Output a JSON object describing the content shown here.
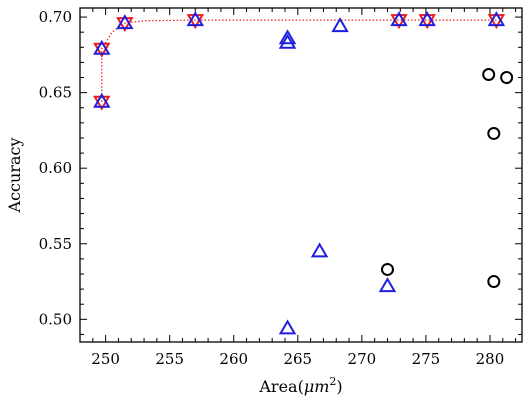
{
  "chart_data": {
    "type": "scatter",
    "title": "",
    "xlabel_main": "Area(",
    "xlabel_unit": "μm",
    "xlabel_exp": "2",
    "xlabel_close": ")",
    "ylabel": "Accuracy",
    "xlim": [
      248,
      282.5
    ],
    "ylim": [
      0.485,
      0.706
    ],
    "x_ticks": [
      250,
      255,
      260,
      265,
      270,
      275,
      280
    ],
    "x_tick_labels": [
      "250",
      "255",
      "260",
      "265",
      "270",
      "275",
      "280"
    ],
    "y_ticks": [
      0.5,
      0.55,
      0.6,
      0.65,
      0.7
    ],
    "y_tick_labels": [
      "0.50",
      "0.55",
      "0.60",
      "0.65",
      "0.70"
    ],
    "grid": false,
    "series": [
      {
        "marker": "circle",
        "color": "#000000",
        "points": [
          [
            272.0,
            0.533
          ],
          [
            280.3,
            0.525
          ],
          [
            279.9,
            0.662
          ],
          [
            281.3,
            0.66
          ],
          [
            280.3,
            0.623
          ]
        ]
      },
      {
        "marker": "triangle-up",
        "color": "#1f1fe0",
        "points": [
          [
            249.7,
            0.644
          ],
          [
            249.7,
            0.679
          ],
          [
            251.5,
            0.696
          ],
          [
            257.0,
            0.698
          ],
          [
            264.2,
            0.686
          ],
          [
            264.2,
            0.683
          ],
          [
            268.3,
            0.694
          ],
          [
            272.9,
            0.698
          ],
          [
            275.1,
            0.698
          ],
          [
            280.5,
            0.698
          ],
          [
            264.2,
            0.494
          ],
          [
            266.7,
            0.545
          ],
          [
            272.0,
            0.522
          ]
        ]
      },
      {
        "marker": "triangle-down",
        "color": "#ee1c1c",
        "points": [
          [
            249.7,
            0.644
          ],
          [
            249.7,
            0.679
          ],
          [
            251.5,
            0.696
          ],
          [
            257.0,
            0.698
          ],
          [
            272.9,
            0.698
          ],
          [
            275.1,
            0.698
          ],
          [
            280.5,
            0.698
          ]
        ]
      },
      {
        "marker": "dotted-line",
        "color": "#ee1c1c",
        "points": [
          [
            249.7,
            0.644
          ],
          [
            249.7,
            0.679
          ],
          [
            250.5,
            0.69
          ],
          [
            251.5,
            0.696
          ],
          [
            253.0,
            0.6975
          ],
          [
            257.0,
            0.698
          ],
          [
            265.0,
            0.698
          ],
          [
            272.9,
            0.698
          ],
          [
            275.1,
            0.698
          ],
          [
            280.5,
            0.698
          ]
        ]
      }
    ]
  }
}
